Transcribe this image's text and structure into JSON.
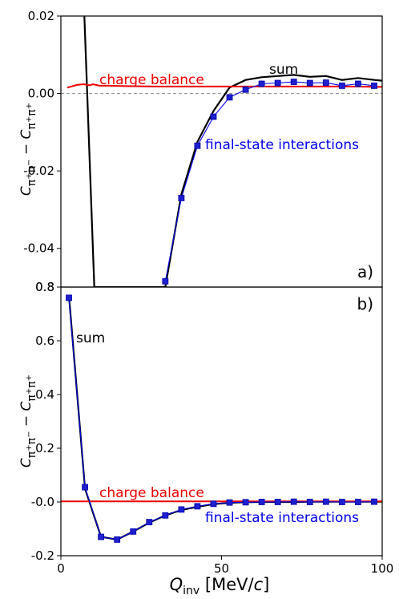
{
  "figure": {
    "xlabel_main": "Q",
    "xlabel_sub": "inv",
    "xlabel_units_pre": " [MeV/",
    "xlabel_units_c": "c",
    "xlabel_units_post": "]",
    "colors": {
      "sum": "#000000",
      "charge_balance": "#ee0000",
      "fsi": "#0000ee",
      "fsi_marker": "#1f1fcf",
      "zero_line": "#888888"
    }
  },
  "chart_data": [
    {
      "type": "line",
      "panel_label": "a)",
      "ylabel": "C_{π⁺π⁻} − C_{π⁺π⁺}",
      "xlim": [
        0,
        100
      ],
      "ylim": [
        -0.05,
        0.02
      ],
      "x_ticks": [],
      "y_ticks": [
        "0.02",
        "0.00",
        "-0.02",
        "-0.04"
      ],
      "y_tick_values": [
        0.02,
        0.0,
        -0.02,
        -0.04
      ],
      "bottom_label": "0.8",
      "zero_line": true,
      "annotations": {
        "sum": "sum",
        "charge_balance": "charge balance",
        "fsi": "final-state interactions"
      },
      "series": [
        {
          "key": "sum",
          "x": [
            7.3,
            10.4,
            32.5,
            37.5,
            42.5,
            47.5,
            52.5,
            57.5,
            62.5,
            67.5,
            72.5,
            77.5,
            82.5,
            87.5,
            92.5,
            97.5,
            100
          ],
          "y": [
            0.02,
            -0.05,
            -0.05,
            -0.026,
            -0.0125,
            -0.0045,
            0.0015,
            0.0035,
            0.0042,
            0.0045,
            0.0048,
            0.0043,
            0.0045,
            0.0035,
            0.004,
            0.0035,
            0.0033
          ]
        },
        {
          "key": "charge_balance",
          "x": [
            2,
            5,
            7,
            9,
            10,
            12,
            15,
            20,
            30,
            40,
            50,
            60,
            70,
            80,
            90,
            100
          ],
          "y": [
            0.0015,
            0.0022,
            0.0024,
            0.0021,
            0.0024,
            0.002,
            0.002,
            0.0019,
            0.0018,
            0.0018,
            0.0018,
            0.0018,
            0.0018,
            0.0018,
            0.0018,
            0.0017
          ]
        },
        {
          "key": "fsi",
          "x": [
            32.5,
            37.5,
            42.5,
            47.5,
            52.5,
            57.5,
            62.5,
            67.5,
            72.5,
            77.5,
            82.5,
            87.5,
            92.5,
            97.5
          ],
          "y": [
            -0.0485,
            -0.027,
            -0.0135,
            -0.006,
            -0.001,
            0.001,
            0.0025,
            0.0027,
            0.003,
            0.0027,
            0.0028,
            0.002,
            0.0025,
            0.002
          ]
        }
      ]
    },
    {
      "type": "line",
      "panel_label": "b)",
      "ylabel": "C_{π⁺π⁻} − C_{π⁺π⁺}",
      "xlim": [
        0,
        100
      ],
      "ylim": [
        -0.2,
        0.8
      ],
      "x_ticks": [
        "0",
        "50",
        "100"
      ],
      "x_tick_values": [
        0,
        50,
        100
      ],
      "y_ticks": [
        "0.8",
        "0.6",
        "0.4",
        "0.2",
        "-0.0",
        "-0.2"
      ],
      "y_tick_values": [
        0.8,
        0.6,
        0.4,
        0.2,
        0.0,
        -0.2
      ],
      "zero_line": false,
      "annotations": {
        "sum": "sum",
        "charge_balance": "charge balance",
        "fsi": "final-state interactions"
      },
      "series": [
        {
          "key": "sum",
          "x": [
            2.5,
            7.5,
            12.5,
            17.5,
            22.5,
            27.5,
            32.5,
            37.5,
            42.5,
            47.5,
            52.5,
            57.5,
            62.5,
            67.5,
            72.5,
            77.5,
            82.5,
            87.5,
            92.5,
            97.5,
            100
          ],
          "y": [
            0.77,
            0.05,
            -0.13,
            -0.14,
            -0.11,
            -0.077,
            -0.05,
            -0.03,
            -0.018,
            -0.008,
            -0.003,
            -0.001,
            0.0,
            0.0,
            0.0,
            0.001,
            0.001,
            0.001,
            0.001,
            0.001,
            0.001
          ]
        },
        {
          "key": "charge_balance",
          "x": [
            0,
            20,
            40,
            60,
            80,
            100
          ],
          "y": [
            0.002,
            0.002,
            0.002,
            0.002,
            0.002,
            0.002
          ]
        },
        {
          "key": "fsi",
          "x": [
            2.5,
            7.5,
            12.5,
            17.5,
            22.5,
            27.5,
            32.5,
            37.5,
            42.5,
            47.5,
            52.5,
            57.5,
            62.5,
            67.5,
            72.5,
            77.5,
            82.5,
            87.5,
            92.5,
            97.5
          ],
          "y": [
            0.76,
            0.055,
            -0.13,
            -0.14,
            -0.11,
            -0.075,
            -0.05,
            -0.028,
            -0.016,
            -0.007,
            -0.002,
            -0.001,
            0.0,
            0.0,
            0.001,
            0.0,
            0.001,
            0.0,
            0.0,
            0.001
          ]
        }
      ]
    }
  ]
}
